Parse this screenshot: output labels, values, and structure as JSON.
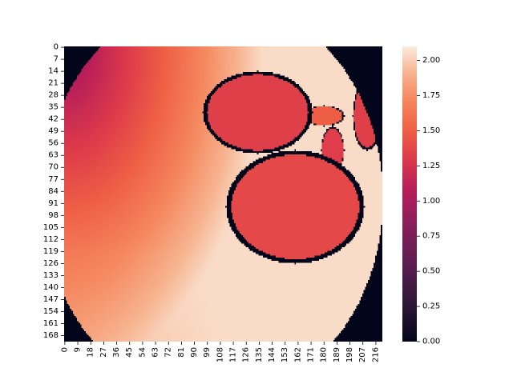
{
  "chart_data": {
    "type": "heatmap",
    "title": "",
    "xlabel": "",
    "ylabel": "",
    "rows": 172,
    "cols": 221,
    "x_tick_labels": [
      "0",
      "9",
      "18",
      "27",
      "36",
      "45",
      "54",
      "63",
      "72",
      "81",
      "90",
      "99",
      "108",
      "117",
      "126",
      "135",
      "144",
      "153",
      "162",
      "171",
      "180",
      "189",
      "198",
      "207",
      "216"
    ],
    "y_tick_labels": [
      "0",
      "7",
      "14",
      "21",
      "28",
      "35",
      "42",
      "49",
      "56",
      "63",
      "70",
      "77",
      "84",
      "91",
      "98",
      "105",
      "112",
      "119",
      "126",
      "133",
      "140",
      "147",
      "154",
      "161",
      "168"
    ],
    "colorbar": {
      "vmin": 0.0,
      "vmax": 2.1,
      "ticks": [
        "0.00",
        "0.25",
        "0.50",
        "0.75",
        "1.00",
        "1.25",
        "1.50",
        "1.75",
        "2.00"
      ],
      "colormap": "rocket"
    },
    "value_field": {
      "description_of_values": "depth-like map: ~1.0 in upper-left corner rising to ~2.0 near lower-middle; corners outside circular aperture are 0",
      "aperture_center": [
        103,
        88
      ],
      "aperture_radius": 118,
      "min_value": 0.95,
      "max_value": 2.05,
      "blobs": [
        {
          "cx": 160,
          "cy": 93,
          "rx": 48,
          "ry": 33,
          "value": 1.38
        },
        {
          "cx": 134,
          "cy": 38,
          "rx": 38,
          "ry": 24,
          "value": 1.33
        },
        {
          "cx": 180,
          "cy": 40,
          "rx": 14,
          "ry": 6,
          "value": 1.5
        },
        {
          "cx": 186,
          "cy": 60,
          "rx": 8,
          "ry": 14,
          "value": 1.32
        },
        {
          "cx": 210,
          "cy": 40,
          "rx": 10,
          "ry": 20,
          "value": 1.33
        }
      ]
    }
  }
}
